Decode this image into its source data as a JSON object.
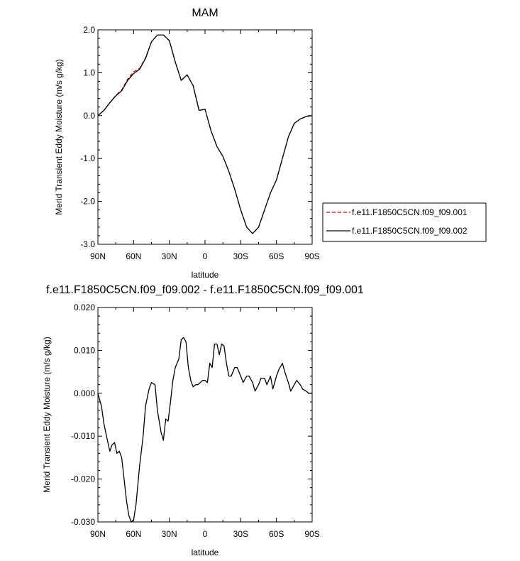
{
  "chart_data": [
    {
      "type": "line",
      "title": "MAM",
      "xlabel": "latitude",
      "ylabel": "Merid Transient Eddy Moisture (m/s g/kg)",
      "x_ticks": [
        "90N",
        "60N",
        "30N",
        "0",
        "30S",
        "60S",
        "90S"
      ],
      "y_ticks": [
        "2.0",
        "1.0",
        "0.0",
        "-1.0",
        "-2.0",
        "-3.0"
      ],
      "xlim": [
        90,
        -90
      ],
      "ylim": [
        -3.0,
        2.0
      ],
      "grid": false,
      "legend": "right",
      "series": [
        {
          "name": "f.e11.F1850C5CN.f09_f09.001",
          "color": "#cc0000",
          "dash": "dashed",
          "x": [
            90,
            85,
            80,
            75,
            70,
            65,
            60,
            55,
            50,
            45,
            40,
            35,
            30,
            25,
            20,
            15,
            10,
            5,
            0,
            -5,
            -10,
            -15,
            -20,
            -25,
            -30,
            -35,
            -40,
            -45,
            -50,
            -55,
            -60,
            -65,
            -70,
            -75,
            -80,
            -85,
            -90
          ],
          "y": [
            0.0,
            0.12,
            0.3,
            0.47,
            0.6,
            0.85,
            1.02,
            1.1,
            1.35,
            1.72,
            1.88,
            1.88,
            1.75,
            1.25,
            0.82,
            0.95,
            0.7,
            0.12,
            0.15,
            -0.35,
            -0.72,
            -0.95,
            -1.3,
            -1.72,
            -2.2,
            -2.6,
            -2.75,
            -2.6,
            -2.2,
            -1.8,
            -1.5,
            -1.0,
            -0.5,
            -0.18,
            -0.08,
            -0.02,
            0.0
          ]
        },
        {
          "name": "f.e11.F1850C5CN.f09_f09.002",
          "color": "#000000",
          "dash": "solid",
          "x": [
            90,
            85,
            80,
            75,
            70,
            65,
            60,
            55,
            50,
            45,
            40,
            35,
            30,
            25,
            20,
            15,
            10,
            5,
            0,
            -5,
            -10,
            -15,
            -20,
            -25,
            -30,
            -35,
            -40,
            -45,
            -50,
            -55,
            -60,
            -65,
            -70,
            -75,
            -80,
            -85,
            -90
          ],
          "y": [
            0.0,
            0.12,
            0.3,
            0.46,
            0.58,
            0.82,
            0.98,
            1.08,
            1.33,
            1.72,
            1.88,
            1.88,
            1.75,
            1.25,
            0.82,
            0.95,
            0.7,
            0.12,
            0.15,
            -0.35,
            -0.72,
            -0.95,
            -1.3,
            -1.72,
            -2.2,
            -2.6,
            -2.75,
            -2.6,
            -2.2,
            -1.8,
            -1.5,
            -1.0,
            -0.5,
            -0.18,
            -0.08,
            -0.02,
            0.0
          ]
        }
      ]
    },
    {
      "type": "line",
      "title": "f.e11.F1850C5CN.f09_f09.002 - f.e11.F1850C5CN.f09_f09.001",
      "xlabel": "latitude",
      "ylabel": "Merid Transient Eddy Moisture (m/s g/kg)",
      "x_ticks": [
        "90N",
        "60N",
        "30N",
        "0",
        "30S",
        "60S",
        "90S"
      ],
      "y_ticks": [
        "0.020",
        "0.010",
        "0.000",
        "-0.010",
        "-0.020",
        "-0.030"
      ],
      "xlim": [
        90,
        -90
      ],
      "ylim": [
        -0.03,
        0.02
      ],
      "grid": false,
      "series": [
        {
          "color": "#000000",
          "dash": "solid",
          "x": [
            90,
            87,
            85,
            82,
            80,
            78,
            76,
            74,
            72,
            70,
            68,
            66,
            64,
            62,
            60,
            58,
            55,
            52,
            50,
            47,
            45,
            42,
            40,
            37,
            35,
            33,
            31,
            29,
            27,
            25,
            22,
            20,
            18,
            16,
            14,
            12,
            10,
            8,
            6,
            4,
            2,
            0,
            -2,
            -4,
            -6,
            -8,
            -10,
            -12,
            -14,
            -16,
            -18,
            -20,
            -22,
            -25,
            -27,
            -30,
            -32,
            -35,
            -37,
            -40,
            -42,
            -45,
            -47,
            -50,
            -52,
            -55,
            -57,
            -60,
            -62,
            -65,
            -67,
            -70,
            -72,
            -75,
            -77,
            -80,
            -82,
            -85,
            -87,
            -90
          ],
          "y": [
            0.0,
            -0.003,
            -0.007,
            -0.011,
            -0.0135,
            -0.012,
            -0.0115,
            -0.014,
            -0.0135,
            -0.015,
            -0.02,
            -0.025,
            -0.0285,
            -0.03,
            -0.0295,
            -0.026,
            -0.017,
            -0.01,
            -0.003,
            0.001,
            0.0025,
            0.002,
            -0.004,
            -0.009,
            -0.011,
            -0.006,
            -0.0065,
            -0.002,
            0.003,
            0.006,
            0.008,
            0.0125,
            0.013,
            0.012,
            0.006,
            0.003,
            0.0015,
            0.002,
            0.002,
            0.0025,
            0.003,
            0.003,
            0.0025,
            0.007,
            0.006,
            0.0115,
            0.0115,
            0.009,
            0.0115,
            0.011,
            0.007,
            0.004,
            0.004,
            0.006,
            0.006,
            0.004,
            0.0025,
            0.004,
            0.004,
            0.0025,
            0.0005,
            0.002,
            0.0035,
            0.0035,
            0.002,
            0.004,
            0.001,
            0.004,
            0.0055,
            0.007,
            0.005,
            0.0025,
            0.0005,
            0.002,
            0.003,
            0.002,
            0.001,
            0.0005,
            0.0,
            0.0
          ]
        }
      ]
    }
  ]
}
